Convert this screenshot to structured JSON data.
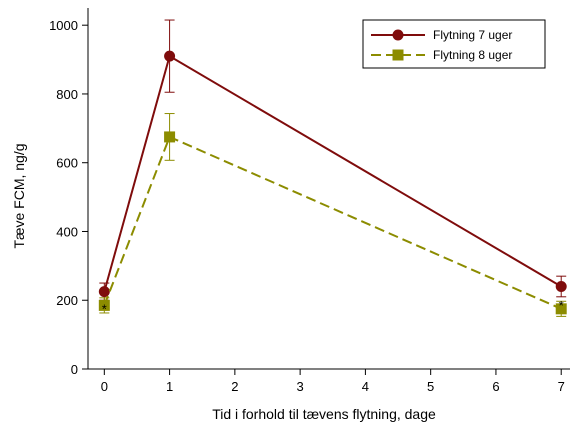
{
  "chart_data": {
    "type": "line",
    "xlabel": "Tid i forhold til tævens flytning, dage",
    "ylabel": "Tæve FCM, ng/g",
    "xlim": [
      -0.25,
      7.15
    ],
    "ylim": [
      0,
      1050
    ],
    "x_ticks": [
      0,
      1,
      2,
      3,
      4,
      5,
      6,
      7
    ],
    "y_ticks": [
      0,
      200,
      400,
      600,
      800,
      1000
    ],
    "legend_position": "top-right",
    "grid": false,
    "series": [
      {
        "name": "Flytning 7 uger",
        "color": "#7f0c0c",
        "line_style": "solid",
        "marker": "circle",
        "x": [
          0,
          1,
          7
        ],
        "y": [
          225,
          910,
          240
        ],
        "err": [
          25,
          105,
          30
        ]
      },
      {
        "name": "Flytning 8 uger",
        "color": "#8c8c00",
        "line_style": "dashed",
        "marker": "square",
        "x": [
          0,
          1,
          7
        ],
        "y": [
          185,
          675,
          175
        ],
        "err": [
          22,
          68,
          22
        ]
      }
    ],
    "annotations": [
      {
        "text": "*",
        "x": 0,
        "y": 185
      },
      {
        "text": "*",
        "x": 7,
        "y": 195
      }
    ]
  }
}
